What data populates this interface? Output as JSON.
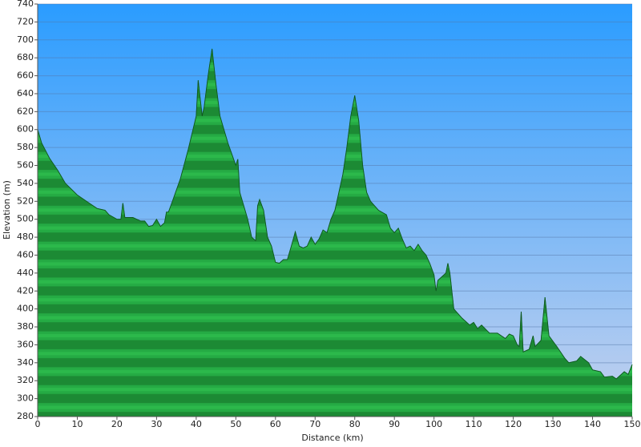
{
  "chart_data": {
    "type": "area",
    "x_label": "Distance   (km)",
    "y_label": "Elevation (m)",
    "x": [
      0,
      1,
      3,
      5,
      7,
      10,
      13,
      15,
      17,
      18,
      20,
      21,
      21.5,
      22,
      24,
      26,
      27,
      28,
      29,
      30,
      31,
      32,
      32.5,
      33,
      34,
      36,
      38,
      40,
      40.5,
      41.5,
      42,
      43,
      44,
      45,
      46,
      48,
      50,
      50.5,
      51,
      53,
      54,
      55,
      55.5,
      56,
      57,
      58,
      59,
      60,
      61,
      62,
      63,
      64,
      65,
      66,
      67,
      68,
      69,
      70,
      71,
      72,
      73,
      74,
      75,
      76,
      77,
      78,
      79,
      80,
      81,
      82,
      83,
      84,
      86,
      88,
      89,
      90,
      91,
      92,
      93,
      94,
      95,
      96,
      97,
      98,
      99,
      100,
      100.5,
      101,
      103,
      103.5,
      104,
      105,
      107,
      109,
      110,
      111,
      112,
      114,
      116,
      117,
      118,
      119,
      120,
      121,
      121.5,
      122,
      122.5,
      124,
      125,
      125.5,
      127,
      128,
      129,
      131,
      133,
      134,
      136,
      137,
      139,
      140,
      142,
      143,
      145,
      146,
      147,
      148,
      149,
      150
    ],
    "values": [
      600,
      585,
      568,
      555,
      540,
      527,
      518,
      512,
      510,
      505,
      500,
      500,
      518,
      502,
      502,
      498,
      498,
      492,
      493,
      500,
      492,
      496,
      508,
      508,
      520,
      545,
      578,
      615,
      655,
      615,
      625,
      660,
      690,
      650,
      615,
      585,
      560,
      567,
      530,
      500,
      480,
      476,
      515,
      522,
      510,
      480,
      470,
      452,
      451,
      455,
      455,
      470,
      486,
      470,
      468,
      470,
      480,
      472,
      478,
      488,
      485,
      500,
      510,
      530,
      550,
      580,
      615,
      638,
      610,
      560,
      530,
      520,
      510,
      505,
      490,
      485,
      490,
      478,
      468,
      470,
      465,
      472,
      465,
      460,
      450,
      438,
      420,
      432,
      440,
      451,
      440,
      400,
      390,
      382,
      385,
      378,
      382,
      373,
      373,
      370,
      367,
      372,
      370,
      360,
      358,
      397,
      352,
      355,
      370,
      358,
      365,
      413,
      370,
      358,
      345,
      340,
      342,
      347,
      340,
      332,
      330,
      324,
      325,
      322,
      326,
      330,
      327,
      338
    ],
    "color": "#1e9a3c",
    "xlim": [
      0,
      150
    ],
    "ylim": [
      280,
      740
    ],
    "xticks": [
      0,
      10,
      20,
      30,
      40,
      50,
      60,
      70,
      80,
      90,
      100,
      110,
      120,
      130,
      140,
      150
    ],
    "yticks": [
      280,
      300,
      320,
      340,
      360,
      380,
      400,
      420,
      440,
      460,
      480,
      500,
      520,
      540,
      560,
      580,
      600,
      620,
      640,
      660,
      680,
      700,
      720,
      740
    ],
    "grid": true
  }
}
